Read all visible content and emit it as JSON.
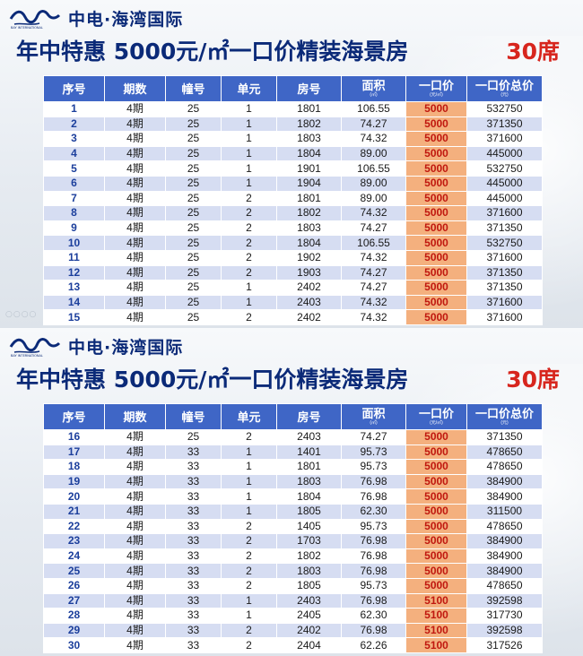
{
  "brand": {
    "name": "中电·海湾国际",
    "small_text": "BAY INTERNATIONAL"
  },
  "headline": {
    "text": "年中特惠 5000元/㎡一口价精装海景房",
    "seats": "30席"
  },
  "table_headers": [
    "序号",
    "期数",
    "幢号",
    "单元",
    "房号",
    "面积",
    "一口价",
    "一口价总价"
  ],
  "header_subs": {
    "area": "(㎡)",
    "price": "(元/㎡)",
    "total": "(元)"
  },
  "colors": {
    "header_bg": "#3f66c6",
    "title": "#0b2a78",
    "seats": "#d7261e",
    "price_cell": "#f4b07e",
    "price_text": "#c0180f"
  },
  "panels": [
    {
      "rows": [
        [
          "1",
          "4期",
          "25",
          "1",
          "1801",
          "106.55",
          "5000",
          "532750"
        ],
        [
          "2",
          "4期",
          "25",
          "1",
          "1802",
          "74.27",
          "5000",
          "371350"
        ],
        [
          "3",
          "4期",
          "25",
          "1",
          "1803",
          "74.32",
          "5000",
          "371600"
        ],
        [
          "4",
          "4期",
          "25",
          "1",
          "1804",
          "89.00",
          "5000",
          "445000"
        ],
        [
          "5",
          "4期",
          "25",
          "1",
          "1901",
          "106.55",
          "5000",
          "532750"
        ],
        [
          "6",
          "4期",
          "25",
          "1",
          "1904",
          "89.00",
          "5000",
          "445000"
        ],
        [
          "7",
          "4期",
          "25",
          "2",
          "1801",
          "89.00",
          "5000",
          "445000"
        ],
        [
          "8",
          "4期",
          "25",
          "2",
          "1802",
          "74.32",
          "5000",
          "371600"
        ],
        [
          "9",
          "4期",
          "25",
          "2",
          "1803",
          "74.27",
          "5000",
          "371350"
        ],
        [
          "10",
          "4期",
          "25",
          "2",
          "1804",
          "106.55",
          "5000",
          "532750"
        ],
        [
          "11",
          "4期",
          "25",
          "2",
          "1902",
          "74.32",
          "5000",
          "371600"
        ],
        [
          "12",
          "4期",
          "25",
          "2",
          "1903",
          "74.27",
          "5000",
          "371350"
        ],
        [
          "13",
          "4期",
          "25",
          "1",
          "2402",
          "74.27",
          "5000",
          "371350"
        ],
        [
          "14",
          "4期",
          "25",
          "1",
          "2403",
          "74.32",
          "5000",
          "371600"
        ],
        [
          "15",
          "4期",
          "25",
          "2",
          "2402",
          "74.32",
          "5000",
          "371600"
        ]
      ]
    },
    {
      "rows": [
        [
          "16",
          "4期",
          "25",
          "2",
          "2403",
          "74.27",
          "5000",
          "371350"
        ],
        [
          "17",
          "4期",
          "33",
          "1",
          "1401",
          "95.73",
          "5000",
          "478650"
        ],
        [
          "18",
          "4期",
          "33",
          "1",
          "1801",
          "95.73",
          "5000",
          "478650"
        ],
        [
          "19",
          "4期",
          "33",
          "1",
          "1803",
          "76.98",
          "5000",
          "384900"
        ],
        [
          "20",
          "4期",
          "33",
          "1",
          "1804",
          "76.98",
          "5000",
          "384900"
        ],
        [
          "21",
          "4期",
          "33",
          "1",
          "1805",
          "62.30",
          "5000",
          "311500"
        ],
        [
          "22",
          "4期",
          "33",
          "2",
          "1405",
          "95.73",
          "5000",
          "478650"
        ],
        [
          "23",
          "4期",
          "33",
          "2",
          "1703",
          "76.98",
          "5000",
          "384900"
        ],
        [
          "24",
          "4期",
          "33",
          "2",
          "1802",
          "76.98",
          "5000",
          "384900"
        ],
        [
          "25",
          "4期",
          "33",
          "2",
          "1803",
          "76.98",
          "5000",
          "384900"
        ],
        [
          "26",
          "4期",
          "33",
          "2",
          "1805",
          "95.73",
          "5000",
          "478650"
        ],
        [
          "27",
          "4期",
          "33",
          "1",
          "2403",
          "76.98",
          "5100",
          "392598"
        ],
        [
          "28",
          "4期",
          "33",
          "1",
          "2405",
          "62.30",
          "5100",
          "317730"
        ],
        [
          "29",
          "4期",
          "33",
          "2",
          "2402",
          "76.98",
          "5100",
          "392598"
        ],
        [
          "30",
          "4期",
          "33",
          "2",
          "2404",
          "62.26",
          "5100",
          "317526"
        ]
      ]
    }
  ]
}
